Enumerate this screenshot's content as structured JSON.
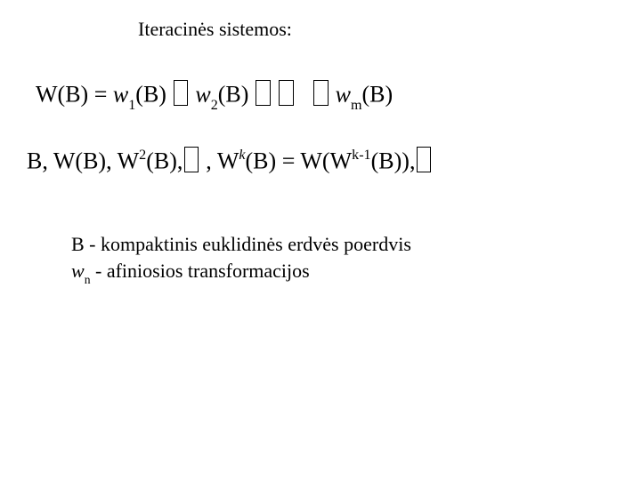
{
  "heading": "Iteracinės sistemos:",
  "eq1": {
    "lhs": "W(B)",
    "eq": "=",
    "w": "w",
    "sub1": "1",
    "sub2": "2",
    "subm": "m",
    "arg": "(B)"
  },
  "eq2": {
    "B": "B,",
    "WB": "W(B),",
    "W": "W",
    "exp2": "2",
    "arg": "(B)",
    "comma": ",",
    "expk": "k",
    "eq": "=",
    "Wopen": "W(W",
    "expk1": "k-1",
    "close": "(B)),"
  },
  "note": {
    "line1": "B - kompaktinis euklidinės erdvės poerdvis",
    "w": "w",
    "wn": "n",
    "line2": " - afiniosios transformacijos"
  }
}
